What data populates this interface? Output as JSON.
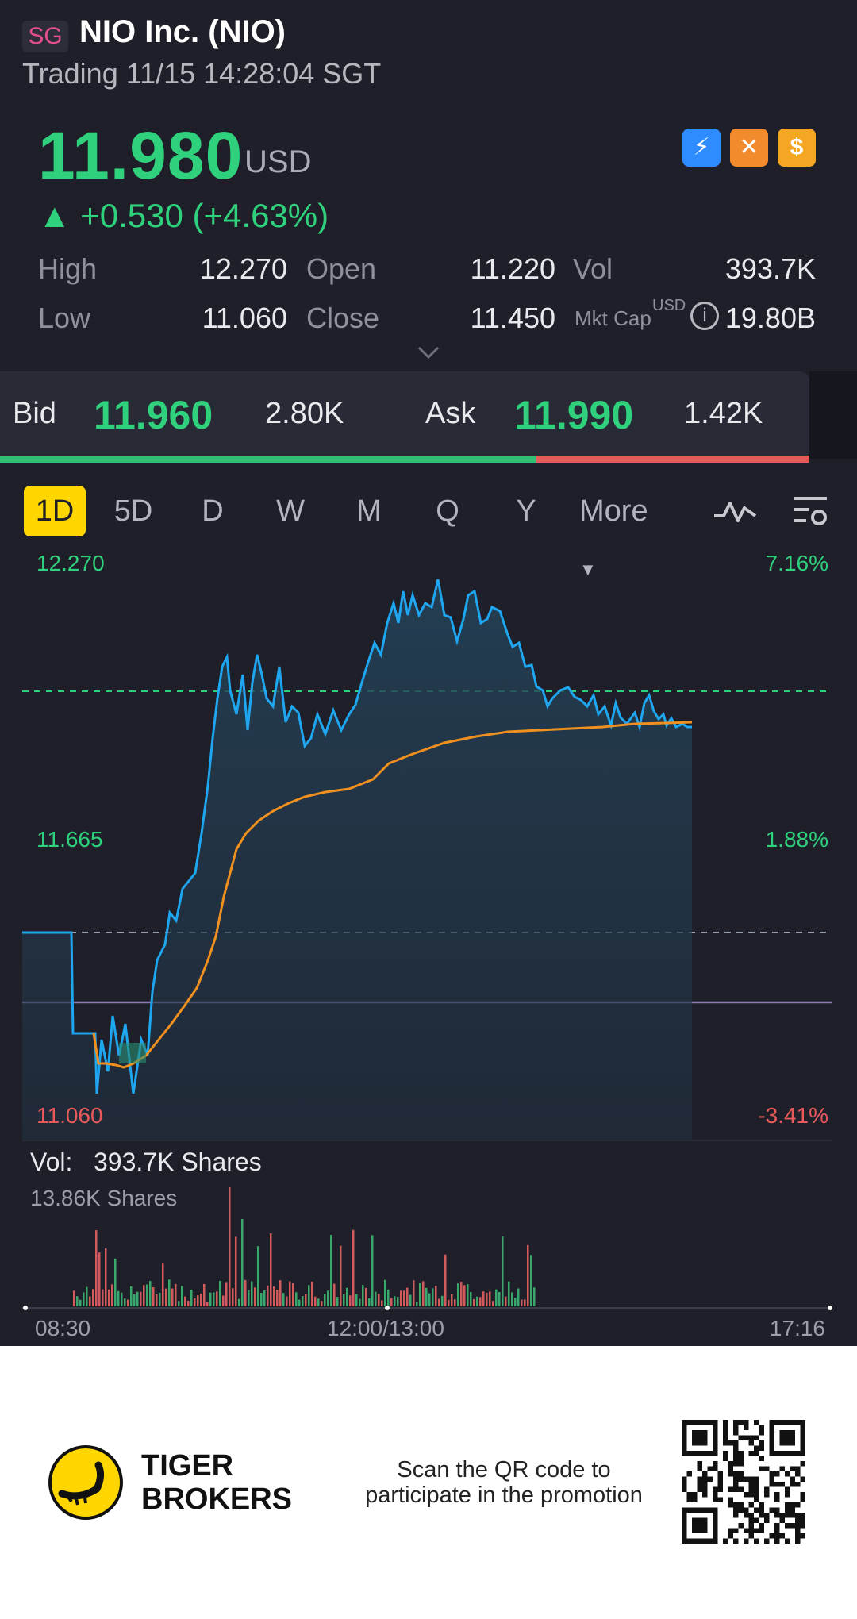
{
  "header": {
    "exchange_badge": "SG",
    "title": "NIO Inc. (NIO)",
    "trading_status": "Trading 11/15 14:28:04 SGT"
  },
  "quote": {
    "price": "11.980",
    "currency": "USD",
    "change": "▲ +0.530 (+4.63%)",
    "badges": [
      {
        "icon": "lightning-icon",
        "color": "#2f8cff",
        "label": "⚡"
      },
      {
        "icon": "fire-icon",
        "color": "#f28a2e",
        "label": "✕"
      },
      {
        "icon": "dollar-icon",
        "color": "#f5a623",
        "label": "$"
      }
    ]
  },
  "stats": {
    "high_label": "High",
    "high": "12.270",
    "open_label": "Open",
    "open": "11.220",
    "vol_label": "Vol",
    "vol": "393.7K",
    "low_label": "Low",
    "low": "11.060",
    "close_label": "Close",
    "close": "11.450",
    "mktcap_label": "Mkt Cap",
    "mktcap_currency": "USD",
    "mktcap": "19.80B"
  },
  "bidask": {
    "bid_label": "Bid",
    "bid_price": "11.960",
    "bid_size": "2.80K",
    "ask_label": "Ask",
    "ask_price": "11.990",
    "ask_size": "1.42K"
  },
  "tabs": [
    "1D",
    "5D",
    "D",
    "W",
    "M",
    "Q",
    "Y",
    "More"
  ],
  "chart_axes": {
    "top_price": "12.270",
    "mid_price": "11.665",
    "bottom_price": "11.060",
    "top_pct": "7.16%",
    "mid_pct": "1.88%",
    "bottom_pct": "-3.41%",
    "time_start": "08:30",
    "time_mid": "12:00/13:00",
    "time_end": "17:16"
  },
  "volume": {
    "label": "Vol:",
    "value": "393.7K Shares",
    "scale": "13.86K Shares"
  },
  "footer": {
    "brand_line1": "TIGER",
    "brand_line2": "BROKERS",
    "promo_line1": "Scan the QR code to",
    "promo_line2": "participate in the promotion"
  },
  "colors": {
    "up": "#2fd17c",
    "down": "#e85a5a",
    "price_line": "#1fa6f0",
    "avg_line": "#f0901e",
    "prev_close": "#8c7bb0",
    "accent": "#ffd600"
  }
}
